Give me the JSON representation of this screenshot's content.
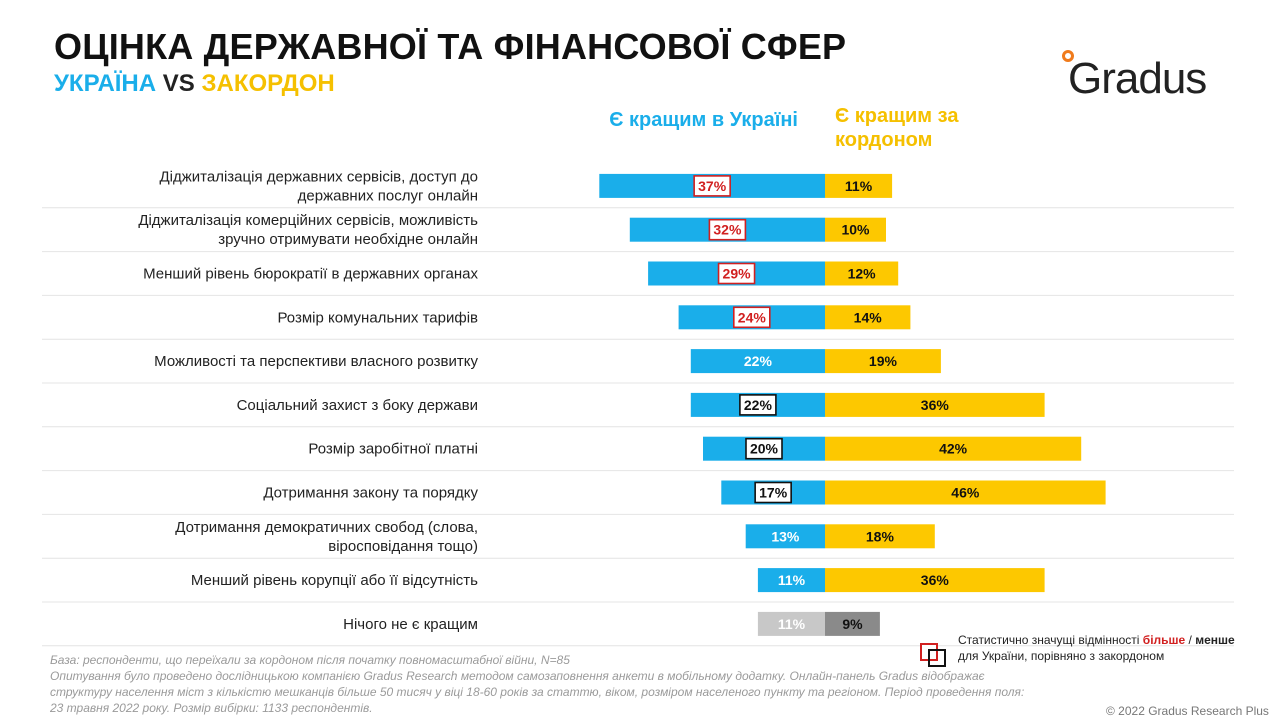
{
  "header": {
    "title": "ОЦІНКА ДЕРЖАВНОЇ ТА ФІНАНСОВОЇ СФЕР",
    "subtitle_ua": "УКРАЇНА",
    "subtitle_vs": " VS ",
    "subtitle_abroad": "ЗАКОРДОН",
    "logo": "Gradus"
  },
  "columns": {
    "ua": "Є кращим в Україні",
    "abroad": "Є кращим за кордоном"
  },
  "colors": {
    "ua": "#1aaeea",
    "abroad": "#fdc800",
    "neutral_ua": "#c8c8c8",
    "neutral_abroad": "#8a8a8a",
    "more": "#d12020",
    "less": "#111111"
  },
  "chart_data": {
    "type": "bar",
    "orientation": "horizontal-diverging",
    "categories": [
      "Діджиталізація державних сервісів, доступ до державних послуг онлайн",
      "Діджиталізація комерційних сервісів, можливість зручно отримувати необхідне онлайн",
      "Менший рівень бюрократії в державних органах",
      "Розмір комунальних тарифів",
      "Можливості та перспективи власного розвитку",
      "Соціальний захист з боку держави",
      "Розмір заробітної платні",
      "Дотримання закону та порядку",
      "Дотримання демократичних свобод (слова, віросповідання тощо)",
      "Менший рівень корупції або її відсутність",
      "Нічого не є кращим"
    ],
    "series": [
      {
        "name": "Є кращим в Україні",
        "values": [
          37,
          32,
          29,
          24,
          22,
          22,
          20,
          17,
          13,
          11,
          11
        ]
      },
      {
        "name": "Є кращим за кордоном",
        "values": [
          11,
          10,
          12,
          14,
          19,
          36,
          42,
          46,
          18,
          36,
          9
        ]
      }
    ],
    "significance": [
      "more",
      "more",
      "more",
      "more",
      "none",
      "less",
      "less",
      "less",
      "none",
      "none",
      "none"
    ],
    "neutral_last": true,
    "unit": "%"
  },
  "legend": {
    "text_before": "Статистично значущі відмінності ",
    "more": "більше",
    "slash": " / ",
    "less": "менше",
    "text_after": " для України, порівняно з закордоном"
  },
  "footnote": {
    "line1": "База: респонденти, що переїхали за кордоном після початку повномасштабної війни, N=85",
    "line2": "Опитування було проведено дослідницькою компанією Gradus Research методом самозаповнення анкети в мобільному додатку. Онлайн-панель Gradus відображає структуру населення міст з кількістю мешканців більше 50 тисяч у віці 18-60 років за статтю, віком, розміром населеного пункту та регіоном. Період проведення поля: 23 травня 2022 року. Розмір вибірки: 1133 респондентів."
  },
  "copyright": "© 2022 Gradus Research Plus"
}
